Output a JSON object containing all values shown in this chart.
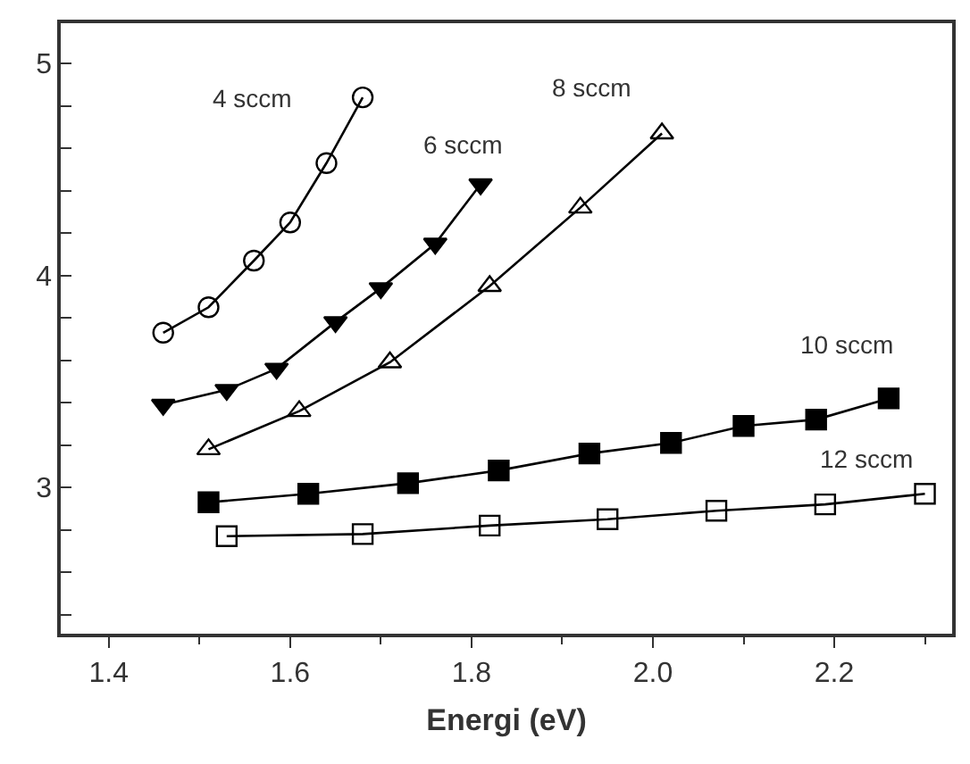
{
  "chart_data": {
    "type": "line",
    "xlabel": "Energi (eV)",
    "xlim": [
      1.347,
      2.33
    ],
    "xticks": [
      {
        "value": 1.4,
        "label": "1.4"
      },
      {
        "value": 1.6,
        "label": "1.6"
      },
      {
        "value": 1.8,
        "label": "1.8"
      },
      {
        "value": 2.0,
        "label": "2.0"
      },
      {
        "value": 2.2,
        "label": "2.2"
      }
    ],
    "ylim": [
      2.31,
      5.19
    ],
    "yticks": [
      3,
      4,
      5
    ],
    "grid": false,
    "legend": false,
    "line_style": "solid",
    "series": [
      {
        "name": "4 sccm",
        "color": "#000000",
        "marker": "circle-open",
        "x": [
          1.46,
          1.51,
          1.56,
          1.6,
          1.64,
          1.68
        ],
        "values": [
          3.73,
          3.85,
          4.07,
          4.25,
          4.53,
          4.84
        ]
      },
      {
        "name": "6 sccm",
        "color": "#000000",
        "marker": "triangle-down",
        "x": [
          1.46,
          1.53,
          1.585,
          1.65,
          1.7,
          1.76,
          1.81
        ],
        "values": [
          3.39,
          3.46,
          3.56,
          3.78,
          3.94,
          4.15,
          4.43
        ]
      },
      {
        "name": "8 sccm",
        "color": "#000000",
        "marker": "triangle-up-open",
        "x": [
          1.51,
          1.61,
          1.71,
          1.82,
          1.92,
          2.01
        ],
        "values": [
          3.18,
          3.36,
          3.59,
          3.95,
          4.32,
          4.67
        ]
      },
      {
        "name": "10 sccm",
        "color": "#000000",
        "marker": "square",
        "x": [
          1.51,
          1.62,
          1.73,
          1.83,
          1.93,
          2.02,
          2.1,
          2.18,
          2.26
        ],
        "values": [
          2.93,
          2.97,
          3.02,
          3.08,
          3.16,
          3.21,
          3.29,
          3.32,
          3.42
        ]
      },
      {
        "name": "12 sccm",
        "color": "#000000",
        "marker": "square-open",
        "x": [
          1.53,
          1.68,
          1.82,
          1.95,
          2.07,
          2.19,
          2.3
        ],
        "values": [
          2.77,
          2.78,
          2.82,
          2.85,
          2.89,
          2.92,
          2.97
        ]
      }
    ]
  }
}
